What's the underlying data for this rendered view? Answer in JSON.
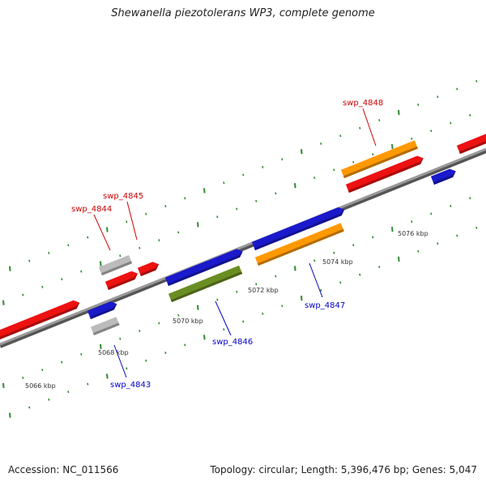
{
  "title": "Shewanella piezotolerans WP3, complete genome",
  "footer": {
    "accession": "Accession: NC_011566",
    "summary": "Topology: circular; Length: 5,396,476 bp; Genes: 5,047"
  },
  "colors": {
    "backbone": "#808080",
    "ticks": "#2e8b2e",
    "forward_label": "#cc0000",
    "reverse_label": "#0000cc",
    "gene_red": "#ee1111",
    "gene_blue": "#1a1acc",
    "gene_gray": "#bbbbbb",
    "gene_orange": "#ff9900",
    "gene_olive": "#6b8e23"
  },
  "scale_labels": [
    "5066 kbp",
    "5068 kbp",
    "5070 kbp",
    "5072 kbp",
    "5074 kbp",
    "5076 kbp"
  ],
  "gene_labels": {
    "swp_4843": "swp_4843",
    "swp_4844": "swp_4844",
    "swp_4845": "swp_4845",
    "swp_4846": "swp_4846",
    "swp_4847": "swp_4847",
    "swp_4848": "swp_4848"
  }
}
